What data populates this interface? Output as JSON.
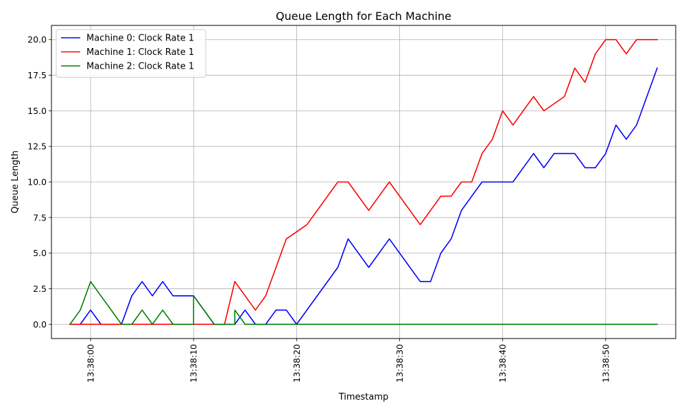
{
  "chart_data": {
    "type": "line",
    "title": "Queue Length for Each Machine",
    "xlabel": "Timestamp",
    "ylabel": "Queue Length",
    "x_unit": "time (HH:MM:SS), 1-second steps",
    "x": [
      "13:37:58",
      "13:37:59",
      "13:38:00",
      "13:38:01",
      "13:38:02",
      "13:38:03",
      "13:38:04",
      "13:38:05",
      "13:38:06",
      "13:38:07",
      "13:38:08",
      "13:38:09",
      "13:38:10",
      "13:38:11",
      "13:38:12",
      "13:38:13",
      "13:38:14",
      "13:38:15",
      "13:38:16",
      "13:38:17",
      "13:38:18",
      "13:38:19",
      "13:38:20",
      "13:38:21",
      "13:38:22",
      "13:38:23",
      "13:38:24",
      "13:38:25",
      "13:38:26",
      "13:38:27",
      "13:38:28",
      "13:38:29",
      "13:38:30",
      "13:38:31",
      "13:38:32",
      "13:38:33",
      "13:38:34",
      "13:38:35",
      "13:38:36",
      "13:38:37",
      "13:38:38",
      "13:38:39",
      "13:38:40",
      "13:38:41",
      "13:38:42",
      "13:38:43",
      "13:38:44",
      "13:38:45",
      "13:38:46",
      "13:38:47",
      "13:38:48",
      "13:38:49",
      "13:38:50",
      "13:38:51",
      "13:38:52",
      "13:38:53",
      "13:38:54",
      "13:38:55"
    ],
    "xlim": [
      "13:37:56.2",
      "13:38:56.8"
    ],
    "ylim": [
      -1,
      21
    ],
    "x_ticks": [
      {
        "value": "13:38:00",
        "label": "13:38:00"
      },
      {
        "value": "13:38:10",
        "label": "13:38:10"
      },
      {
        "value": "13:38:20",
        "label": "13:38:20"
      },
      {
        "value": "13:38:30",
        "label": "13:38:30"
      },
      {
        "value": "13:38:40",
        "label": "13:38:40"
      },
      {
        "value": "13:38:50",
        "label": "13:38:50"
      }
    ],
    "y_ticks": [
      {
        "value": 0,
        "label": "0.0"
      },
      {
        "value": 2.5,
        "label": "2.5"
      },
      {
        "value": 5,
        "label": "5.0"
      },
      {
        "value": 7.5,
        "label": "7.5"
      },
      {
        "value": 10,
        "label": "10.0"
      },
      {
        "value": 12.5,
        "label": "12.5"
      },
      {
        "value": 15,
        "label": "15.0"
      },
      {
        "value": 17.5,
        "label": "17.5"
      },
      {
        "value": 20,
        "label": "20.0"
      }
    ],
    "grid": true,
    "legend_position": "top-left",
    "series": [
      {
        "name": "Machine 0: Clock Rate 1",
        "color": "#0000ff",
        "points": [
          [
            "13:37:58",
            0
          ],
          [
            "13:37:59",
            0
          ],
          [
            "13:38:00",
            1
          ],
          [
            "13:38:01",
            0
          ],
          [
            "13:38:02",
            0
          ],
          [
            "13:38:03",
            0
          ],
          [
            "13:38:04",
            2
          ],
          [
            "13:38:05",
            3
          ],
          [
            "13:38:06",
            2
          ],
          [
            "13:38:07",
            3
          ],
          [
            "13:38:08",
            2
          ],
          [
            "13:38:09",
            2
          ],
          [
            "13:38:10",
            2
          ],
          [
            "13:38:11",
            1
          ],
          [
            "13:38:12",
            0
          ],
          [
            "13:38:13",
            0
          ],
          [
            "13:38:14",
            0
          ],
          [
            "13:38:15",
            1
          ],
          [
            "13:38:16",
            0
          ],
          [
            "13:38:17",
            0
          ],
          [
            "13:38:18",
            1
          ],
          [
            "13:38:19",
            1
          ],
          [
            "13:38:20",
            0
          ],
          [
            "13:38:24",
            4
          ],
          [
            "13:38:25",
            6
          ],
          [
            "13:38:27",
            4
          ],
          [
            "13:38:29",
            6
          ],
          [
            "13:38:32",
            3
          ],
          [
            "13:38:33",
            3
          ],
          [
            "13:38:34",
            5
          ],
          [
            "13:38:35",
            6
          ],
          [
            "13:38:36",
            8
          ],
          [
            "13:38:38",
            10
          ],
          [
            "13:38:41",
            10
          ],
          [
            "13:38:43",
            12
          ],
          [
            "13:38:44",
            11
          ],
          [
            "13:38:45",
            12
          ],
          [
            "13:38:47",
            12
          ],
          [
            "13:38:48",
            11
          ],
          [
            "13:38:49",
            11
          ],
          [
            "13:38:50",
            12
          ],
          [
            "13:38:51",
            14
          ],
          [
            "13:38:52",
            13
          ],
          [
            "13:38:53",
            14
          ],
          [
            "13:38:55",
            18
          ]
        ]
      },
      {
        "name": "Machine 1: Clock Rate 1",
        "color": "#ff0000",
        "points": [
          [
            "13:37:58",
            0
          ],
          [
            "13:38:13",
            0
          ],
          [
            "13:38:14",
            3
          ],
          [
            "13:38:16",
            1
          ],
          [
            "13:38:17",
            2
          ],
          [
            "13:38:19",
            6
          ],
          [
            "13:38:21",
            7
          ],
          [
            "13:38:24",
            10
          ],
          [
            "13:38:25",
            10
          ],
          [
            "13:38:27",
            8
          ],
          [
            "13:38:29",
            10
          ],
          [
            "13:38:32",
            7
          ],
          [
            "13:38:34",
            9
          ],
          [
            "13:38:35",
            9
          ],
          [
            "13:38:36",
            10
          ],
          [
            "13:38:37",
            10
          ],
          [
            "13:38:38",
            12
          ],
          [
            "13:38:39",
            13
          ],
          [
            "13:38:40",
            15
          ],
          [
            "13:38:41",
            14
          ],
          [
            "13:38:43",
            16
          ],
          [
            "13:38:44",
            15
          ],
          [
            "13:38:46",
            16
          ],
          [
            "13:38:47",
            18
          ],
          [
            "13:38:48",
            17
          ],
          [
            "13:38:49",
            19
          ],
          [
            "13:38:50",
            20
          ],
          [
            "13:38:51",
            20
          ],
          [
            "13:38:52",
            19
          ],
          [
            "13:38:53",
            20
          ],
          [
            "13:38:55",
            20
          ]
        ]
      },
      {
        "name": "Machine 2: Clock Rate 1",
        "color": "#008000",
        "points": [
          [
            "13:37:58",
            0
          ],
          [
            "13:37:59",
            1
          ],
          [
            "13:38:00",
            3
          ],
          [
            "13:38:03",
            0
          ],
          [
            "13:38:04",
            0
          ],
          [
            "13:38:05",
            1
          ],
          [
            "13:38:06",
            0
          ],
          [
            "13:38:07",
            1
          ],
          [
            "13:38:08",
            0
          ],
          [
            "13:38:10",
            0
          ],
          [
            "13:38:10",
            2
          ],
          [
            "13:38:12",
            0
          ],
          [
            "13:38:14",
            0
          ],
          [
            "13:38:14",
            1
          ],
          [
            "13:38:15",
            0
          ],
          [
            "13:38:55",
            0
          ]
        ]
      }
    ]
  }
}
